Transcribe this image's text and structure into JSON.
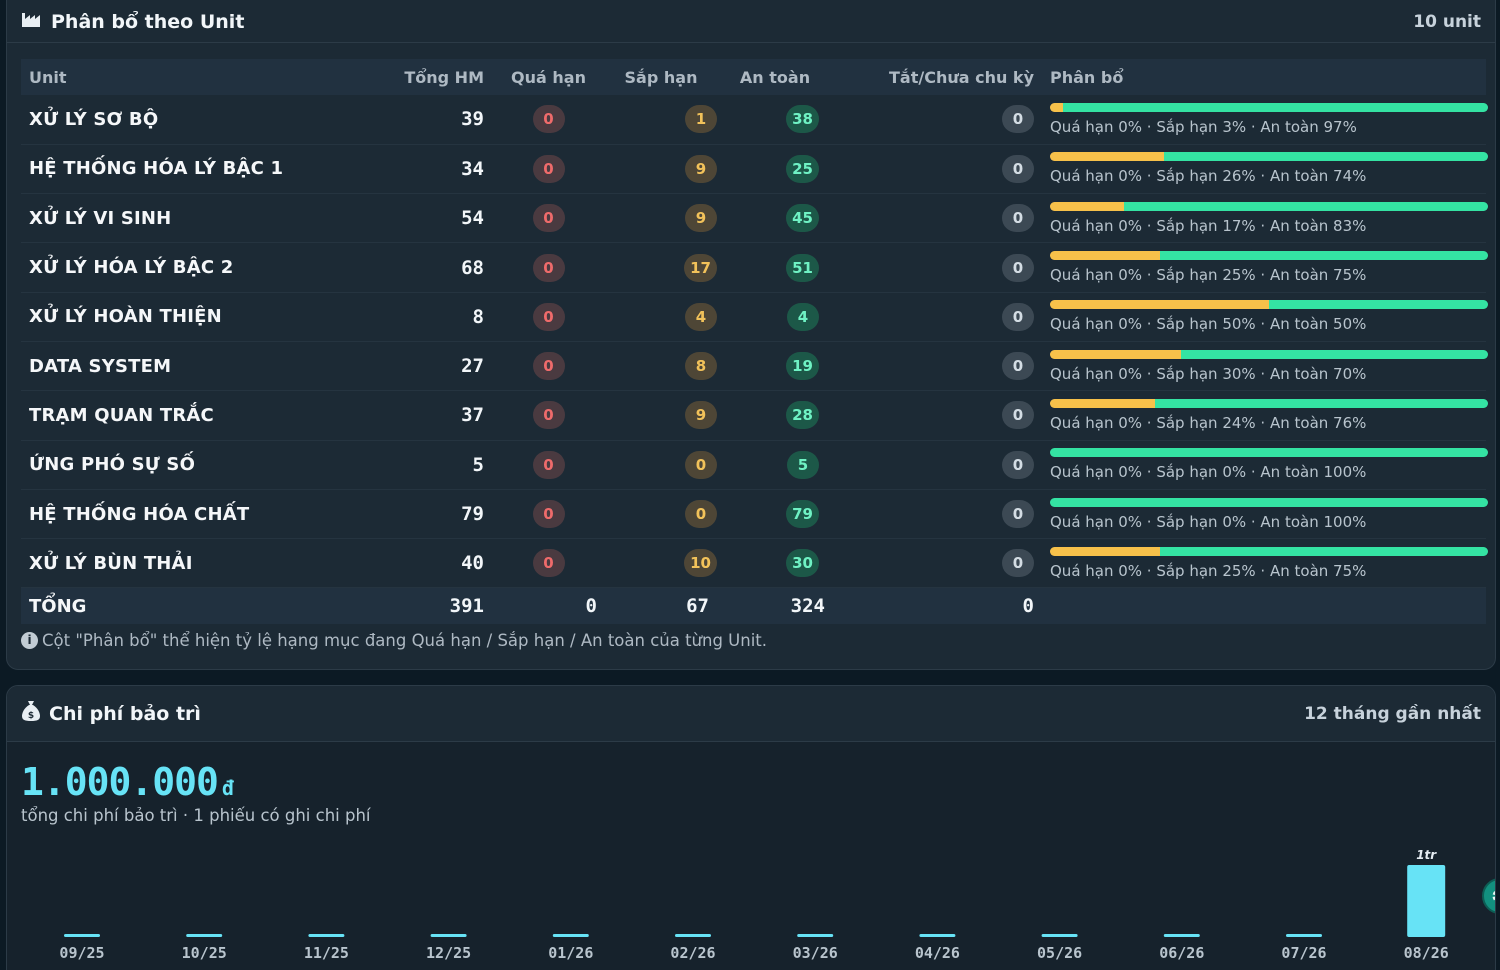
{
  "unit_section": {
    "title": "Phân bổ theo Unit",
    "count_label": "10 unit",
    "columns": [
      "Unit",
      "Tổng HM",
      "Quá hạn",
      "Sắp hạn",
      "An toàn",
      "Tắt/Chưa chu kỳ",
      "Phân bổ"
    ],
    "rows": [
      {
        "name": "XỬ LÝ SƠ BỘ",
        "total": "39",
        "overdue": "0",
        "due_soon": "1",
        "safe": "38",
        "off": "0",
        "overdue_pct": 0,
        "due_soon_pct": 3,
        "safe_pct": 97,
        "dist_text": "Quá hạn 0% · Sắp hạn 3% · An toàn 97%"
      },
      {
        "name": "HỆ THỐNG HÓA LÝ BẬC 1",
        "total": "34",
        "overdue": "0",
        "due_soon": "9",
        "safe": "25",
        "off": "0",
        "overdue_pct": 0,
        "due_soon_pct": 26,
        "safe_pct": 74,
        "dist_text": "Quá hạn 0% · Sắp hạn 26% · An toàn 74%"
      },
      {
        "name": "XỬ LÝ VI SINH",
        "total": "54",
        "overdue": "0",
        "due_soon": "9",
        "safe": "45",
        "off": "0",
        "overdue_pct": 0,
        "due_soon_pct": 17,
        "safe_pct": 83,
        "dist_text": "Quá hạn 0% · Sắp hạn 17% · An toàn 83%"
      },
      {
        "name": "XỬ LÝ HÓA LÝ BẬC 2",
        "total": "68",
        "overdue": "0",
        "due_soon": "17",
        "safe": "51",
        "off": "0",
        "overdue_pct": 0,
        "due_soon_pct": 25,
        "safe_pct": 75,
        "dist_text": "Quá hạn 0% · Sắp hạn 25% · An toàn 75%"
      },
      {
        "name": "XỬ LÝ HOÀN THIỆN",
        "total": "8",
        "overdue": "0",
        "due_soon": "4",
        "safe": "4",
        "off": "0",
        "overdue_pct": 0,
        "due_soon_pct": 50,
        "safe_pct": 50,
        "dist_text": "Quá hạn 0% · Sắp hạn 50% · An toàn 50%"
      },
      {
        "name": "DATA SYSTEM",
        "total": "27",
        "overdue": "0",
        "due_soon": "8",
        "safe": "19",
        "off": "0",
        "overdue_pct": 0,
        "due_soon_pct": 30,
        "safe_pct": 70,
        "dist_text": "Quá hạn 0% · Sắp hạn 30% · An toàn 70%"
      },
      {
        "name": "TRẠM QUAN TRẮC",
        "total": "37",
        "overdue": "0",
        "due_soon": "9",
        "safe": "28",
        "off": "0",
        "overdue_pct": 0,
        "due_soon_pct": 24,
        "safe_pct": 76,
        "dist_text": "Quá hạn 0% · Sắp hạn 24% · An toàn 76%"
      },
      {
        "name": "ỨNG PHÓ SỰ SỐ",
        "total": "5",
        "overdue": "0",
        "due_soon": "0",
        "safe": "5",
        "off": "0",
        "overdue_pct": 0,
        "due_soon_pct": 0,
        "safe_pct": 100,
        "dist_text": "Quá hạn 0% · Sắp hạn 0% · An toàn 100%"
      },
      {
        "name": "HỆ THỐNG HÓA CHẤT",
        "total": "79",
        "overdue": "0",
        "due_soon": "0",
        "safe": "79",
        "off": "0",
        "overdue_pct": 0,
        "due_soon_pct": 0,
        "safe_pct": 100,
        "dist_text": "Quá hạn 0% · Sắp hạn 0% · An toàn 100%"
      },
      {
        "name": "XỬ LÝ BÙN THẢI",
        "total": "40",
        "overdue": "0",
        "due_soon": "10",
        "safe": "30",
        "off": "0",
        "overdue_pct": 0,
        "due_soon_pct": 25,
        "safe_pct": 75,
        "dist_text": "Quá hạn 0% · Sắp hạn 25% · An toàn 75%"
      }
    ],
    "totals": {
      "label": "TỔNG",
      "total": "391",
      "overdue": "0",
      "due_soon": "67",
      "safe": "324",
      "off": "0"
    },
    "note": "Cột \"Phân bổ\" thể hiện tỷ lệ hạng mục đang Quá hạn / Sắp hạn / An toàn của từng Unit.",
    "colors": {
      "overdue": "#ef6b6b",
      "due_soon": "#f7c14a",
      "safe": "#34e3a3"
    }
  },
  "cost_section": {
    "title": "Chi phí bảo trì",
    "period_label": "12 tháng gần nhất",
    "total_amount": "1.000.000",
    "currency": "đ",
    "subtitle": "tổng chi phí bảo trì · 1 phiếu có ghi chi phí",
    "accent_color": "#67e3f6",
    "chart_data": {
      "type": "bar",
      "categories": [
        "09/25",
        "10/25",
        "11/25",
        "12/25",
        "01/26",
        "02/26",
        "03/26",
        "04/26",
        "05/26",
        "06/26",
        "07/26",
        "08/26"
      ],
      "values": [
        0,
        0,
        0,
        0,
        0,
        0,
        0,
        0,
        0,
        0,
        0,
        1000000
      ],
      "data_labels": [
        "",
        "",
        "",
        "",
        "",
        "",
        "",
        "",
        "",
        "",
        "",
        "1tr"
      ],
      "title": "",
      "xlabel": "",
      "ylabel": "",
      "ylim": [
        0,
        1000000
      ],
      "grid": false
    }
  },
  "icons": {
    "unit_header": "factory-icon",
    "cost_header": "money-bag-icon",
    "note": "info-icon",
    "fab": "gear-icon"
  }
}
